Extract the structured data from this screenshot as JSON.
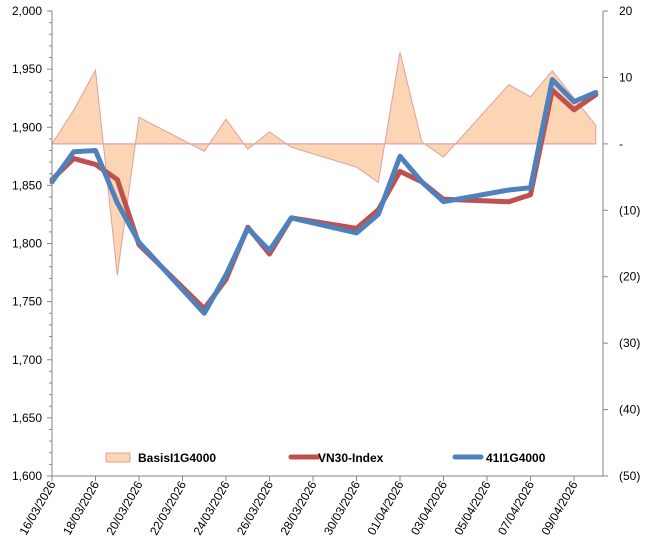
{
  "chart_data": {
    "type": "line",
    "title": "",
    "dates": [
      "16/03/2026",
      "17/03/2026",
      "18/03/2026",
      "19/03/2026",
      "20/03/2026",
      "23/03/2026",
      "24/03/2026",
      "25/03/2026",
      "26/03/2026",
      "27/03/2026",
      "30/03/2026",
      "31/03/2026",
      "01/04/2026",
      "02/04/2026",
      "03/04/2026",
      "06/04/2026",
      "07/04/2026",
      "08/04/2026",
      "09/04/2026",
      "10/04/2026"
    ],
    "x_tick_labels": [
      "16/03/2026",
      "18/03/2026",
      "20/03/2026",
      "22/03/2026",
      "24/03/2026",
      "26/03/2026",
      "28/03/2026",
      "30/03/2026",
      "01/04/2026",
      "03/04/2026",
      "05/04/2026",
      "07/04/2026",
      "09/04/2026"
    ],
    "left_axis": {
      "range": [
        1600,
        2000
      ],
      "ticks": [
        "1,600",
        "1,650",
        "1,700",
        "1,750",
        "1,800",
        "1,850",
        "1,900",
        "1,950",
        "2,000"
      ],
      "tick_values": [
        1600,
        1650,
        1700,
        1750,
        1800,
        1850,
        1900,
        1950,
        2000
      ]
    },
    "right_axis": {
      "range": [
        -50,
        20
      ],
      "ticks": [
        "(50)",
        "(40)",
        "(30)",
        "(20)",
        "(10)",
        "-",
        "10",
        "20"
      ],
      "tick_values": [
        -50,
        -40,
        -30,
        -20,
        -10,
        0,
        10,
        20
      ]
    },
    "series": [
      {
        "name": "BasisI1G4000",
        "type": "area",
        "axis": "right",
        "color": "#FCD5B4",
        "stroke": "#E0A0A0",
        "values": [
          0,
          5.1,
          11.1,
          -19.8,
          4.0,
          -1.1,
          3.7,
          -0.8,
          1.8,
          -0.5,
          -3.5,
          -5.8,
          13.8,
          0.3,
          -2.0,
          8.9,
          7.1,
          11.0,
          6.9,
          2.8
        ]
      },
      {
        "name": "VN30-Index",
        "type": "line",
        "axis": "left",
        "color": "#C0504D",
        "values": [
          1855,
          1873,
          1868,
          1855,
          1799,
          1744,
          1769,
          1814,
          1791,
          1822,
          1813,
          1829,
          1862,
          1853,
          1838,
          1836,
          1842,
          1932,
          1915,
          1928
        ]
      },
      {
        "name": "41I1G4000",
        "type": "line",
        "axis": "left",
        "color": "#4F81BD",
        "values": [
          1853,
          1879,
          1880,
          1835,
          1801,
          1740,
          1773,
          1813,
          1794,
          1822,
          1809,
          1825,
          1875,
          1853,
          1836,
          1846,
          1848,
          1941,
          1922,
          1930
        ]
      }
    ],
    "legend": {
      "placement": "bottom-inside",
      "labels": [
        "BasisI1G4000",
        "VN30-Index",
        "41I1G4000"
      ]
    }
  }
}
